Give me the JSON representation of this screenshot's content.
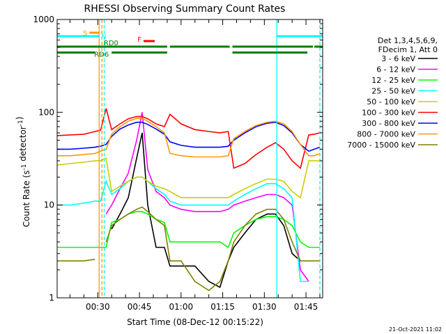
{
  "chart_data": {
    "type": "line",
    "title": "RHESSI Observing Summary Count Rates",
    "xlabel": "Start Time (08-Dec-12 00:15:22)",
    "ylabel": "Count Rate (s⁻¹ detector⁻¹)",
    "y_scale": "log",
    "ylim": [
      1,
      1000
    ],
    "y_tick_labels": [
      "1",
      "10",
      "100",
      "1000"
    ],
    "xlim": [
      "00:15:22",
      "01:51:00"
    ],
    "x_tick_labels": [
      "00:30",
      "00:45",
      "01:00",
      "01:15",
      "01:30",
      "01:45"
    ],
    "legend": {
      "placement": "right",
      "header": [
        "Det 1,3,4,5,6,9,",
        "FDecim 1, Att 0"
      ],
      "entries": [
        {
          "name": "3 - 6 keV",
          "color": "#000000"
        },
        {
          "name": "6 - 12 keV",
          "color": "#ff00ff"
        },
        {
          "name": "12 - 25 keV",
          "color": "#00ff00"
        },
        {
          "name": "25 - 50 keV",
          "color": "#00ffff"
        },
        {
          "name": "50 - 100 keV",
          "color": "#cccc00"
        },
        {
          "name": "100 - 300 keV",
          "color": "#ff0000"
        },
        {
          "name": "300 - 800 keV",
          "color": "#0000ff"
        },
        {
          "name": "800 - 7000 keV",
          "color": "#ff9900"
        },
        {
          "name": "7000 - 15000 keV",
          "color": "#808000"
        }
      ]
    },
    "flags": [
      {
        "label": "S",
        "color": "#ff9900",
        "level": 720,
        "spans": [
          [
            "00:27:00",
            "00:30:30"
          ]
        ]
      },
      {
        "label": "N",
        "color": "#00ffff",
        "level": 660,
        "spans": [
          [
            "00:15:22",
            "00:30:30"
          ],
          [
            "01:34:30",
            "01:51:00"
          ]
        ]
      },
      {
        "label": "F",
        "color": "#ff0000",
        "level": 585,
        "spans": [
          [
            "00:46:30",
            "00:50:30"
          ]
        ]
      },
      {
        "label": "RD0",
        "color": "#008000",
        "level": 510,
        "spans": [
          [
            "00:15:22",
            "00:55:00"
          ],
          [
            "00:56:00",
            "01:17:30"
          ],
          [
            "01:18:30",
            "01:47:30"
          ],
          [
            "01:48:00",
            "01:51:00"
          ]
        ]
      },
      {
        "label": "RD6",
        "color": "#008000",
        "level": 440,
        "spans": [
          [
            "00:15:22",
            "00:29:00"
          ],
          [
            "00:35:00",
            "00:55:00"
          ],
          [
            "01:18:30",
            "01:45:30"
          ]
        ]
      }
    ],
    "vertical_markers": [
      {
        "time": "00:30:30",
        "color": "#ff9900",
        "style": "solid"
      },
      {
        "time": "00:31:30",
        "color": "#ff9900",
        "style": "dashed"
      },
      {
        "time": "00:32:20",
        "color": "#00ffff",
        "style": "dashed"
      },
      {
        "time": "01:34:30",
        "color": "#00ffff",
        "style": "solid"
      },
      {
        "time": "01:50:00",
        "color": "#00ffff",
        "style": "dashed"
      }
    ],
    "x_time": [
      "00:15:22",
      "00:20",
      "00:25",
      "00:29",
      "00:31",
      "00:33",
      "00:35",
      "00:38",
      "00:41",
      "00:44",
      "00:46",
      "00:48",
      "00:51",
      "00:54",
      "00:56",
      "01:00",
      "01:05",
      "01:10",
      "01:14",
      "01:17",
      "01:19",
      "01:23",
      "01:27",
      "01:31",
      "01:34",
      "01:37",
      "01:40",
      "01:43",
      "01:46",
      "01:48",
      "01:50"
    ],
    "series": [
      {
        "name": "3 - 6 keV",
        "color": "#000000",
        "values": [
          null,
          null,
          null,
          null,
          null,
          null,
          5.5,
          8,
          12,
          32,
          60,
          10,
          3.5,
          3.5,
          2.2,
          2.2,
          2.2,
          1.5,
          1.3,
          2.5,
          3.5,
          5,
          7,
          8,
          8,
          6,
          3,
          2.5,
          null,
          null,
          null
        ]
      },
      {
        "name": "6 - 12 keV",
        "color": "#ff00ff",
        "values": [
          null,
          null,
          null,
          null,
          null,
          8,
          10,
          15,
          22,
          50,
          100,
          24,
          14,
          12,
          10,
          9,
          8.5,
          8.5,
          8.5,
          9,
          10,
          11,
          12,
          13,
          13,
          12,
          10,
          2,
          1.5,
          null,
          null
        ]
      },
      {
        "name": "12 - 25 keV",
        "color": "#00ff00",
        "values": [
          3.5,
          3.5,
          3.5,
          3.5,
          3.5,
          3.5,
          6.5,
          7,
          8,
          8.5,
          8.5,
          8,
          7,
          6.5,
          4,
          4,
          4,
          4,
          4,
          3.5,
          5,
          6,
          7,
          7.5,
          7.5,
          7,
          6,
          4,
          3.5,
          3.5,
          3.5
        ]
      },
      {
        "name": "25 - 50 keV",
        "color": "#00ffff",
        "values": [
          10,
          10,
          10.5,
          11,
          11,
          18,
          13,
          15,
          18,
          20,
          20,
          18,
          15,
          13,
          11,
          10,
          10,
          10,
          10,
          10,
          11,
          13,
          15,
          17,
          17,
          15,
          12,
          1.5,
          1.5,
          null,
          null
        ]
      },
      {
        "name": "50 - 100 keV",
        "color": "#cccc00",
        "values": [
          27,
          28,
          29,
          30,
          30,
          32,
          14,
          16,
          18,
          20,
          20,
          18,
          16,
          15,
          14,
          12,
          12,
          12,
          12,
          12,
          13,
          15,
          17,
          19,
          19,
          18,
          14,
          12,
          30,
          30,
          30
        ]
      },
      {
        "name": "100 - 300 keV",
        "color": "#ff0000",
        "values": [
          56,
          57,
          58,
          62,
          64,
          110,
          65,
          75,
          85,
          90,
          90,
          85,
          75,
          70,
          95,
          75,
          65,
          62,
          60,
          62,
          25,
          28,
          35,
          42,
          47,
          40,
          30,
          25,
          57,
          58,
          60
        ]
      },
      {
        "name": "300 - 800 keV",
        "color": "#0000ff",
        "values": [
          40,
          40,
          41,
          42,
          43,
          45,
          55,
          66,
          73,
          78,
          78,
          74,
          66,
          58,
          48,
          44,
          42,
          42,
          42,
          43,
          50,
          60,
          70,
          76,
          78,
          72,
          60,
          45,
          38,
          40,
          42
        ]
      },
      {
        "name": "800 - 7000 keV",
        "color": "#ff9900",
        "values": [
          34,
          34,
          35,
          36,
          38,
          40,
          58,
          70,
          80,
          86,
          86,
          80,
          70,
          60,
          36,
          34,
          33,
          33,
          33,
          34,
          52,
          62,
          72,
          78,
          80,
          75,
          62,
          45,
          34,
          34,
          36
        ]
      },
      {
        "name": "7000 - 15000 keV",
        "color": "#808000",
        "values": [
          2.5,
          2.5,
          2.5,
          2.6,
          null,
          4,
          6,
          7,
          8,
          9,
          9.5,
          8.5,
          7,
          6,
          2.5,
          2.5,
          1.5,
          1.2,
          1.5,
          2.5,
          4,
          6,
          8,
          9,
          9,
          7,
          4,
          2.5,
          2.5,
          2.5,
          2.5
        ]
      }
    ]
  },
  "footer": {
    "timestamp": "21-Oct-2021 11:02"
  }
}
